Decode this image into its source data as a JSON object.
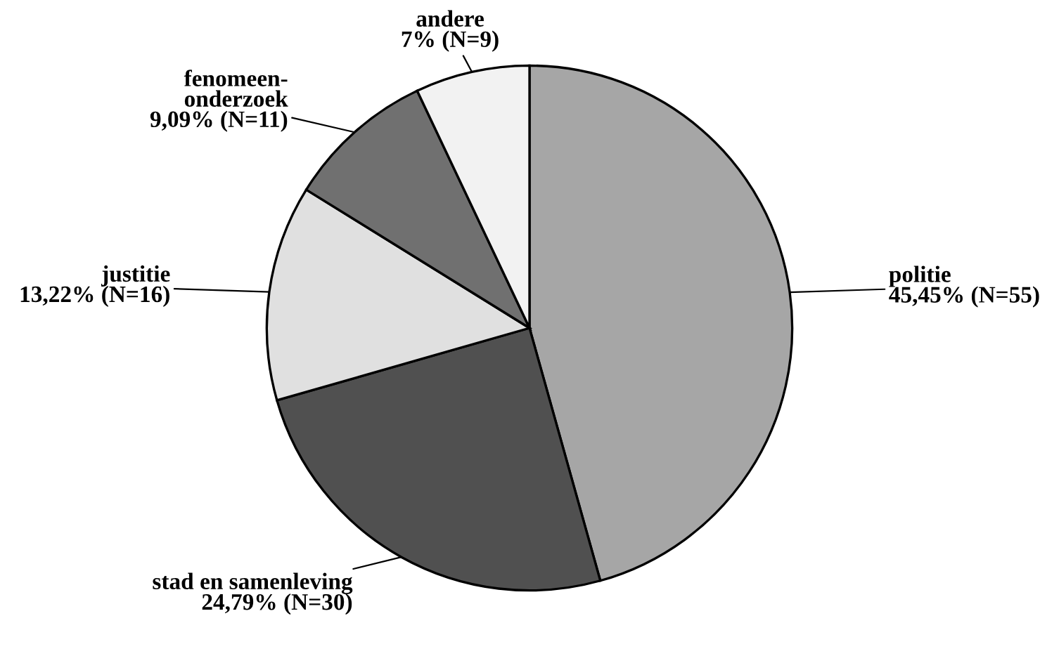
{
  "chart_data": {
    "type": "pie",
    "categories": [
      "politie",
      "stad en samenleving",
      "justitie",
      "fenomeen-\nonderzoek",
      "andere"
    ],
    "values": [
      45.45,
      24.79,
      13.22,
      9.09,
      7
    ],
    "value_labels": [
      "45,45% (N=55)",
      "24,79% (N=30)",
      "13,22% (N=16)",
      "9,09% (N=11)",
      "7% (N=9)"
    ],
    "colors": [
      "#a6a6a6",
      "#505050",
      "#e0e0e0",
      "#707070",
      "#f2f2f2"
    ],
    "legend": false
  }
}
